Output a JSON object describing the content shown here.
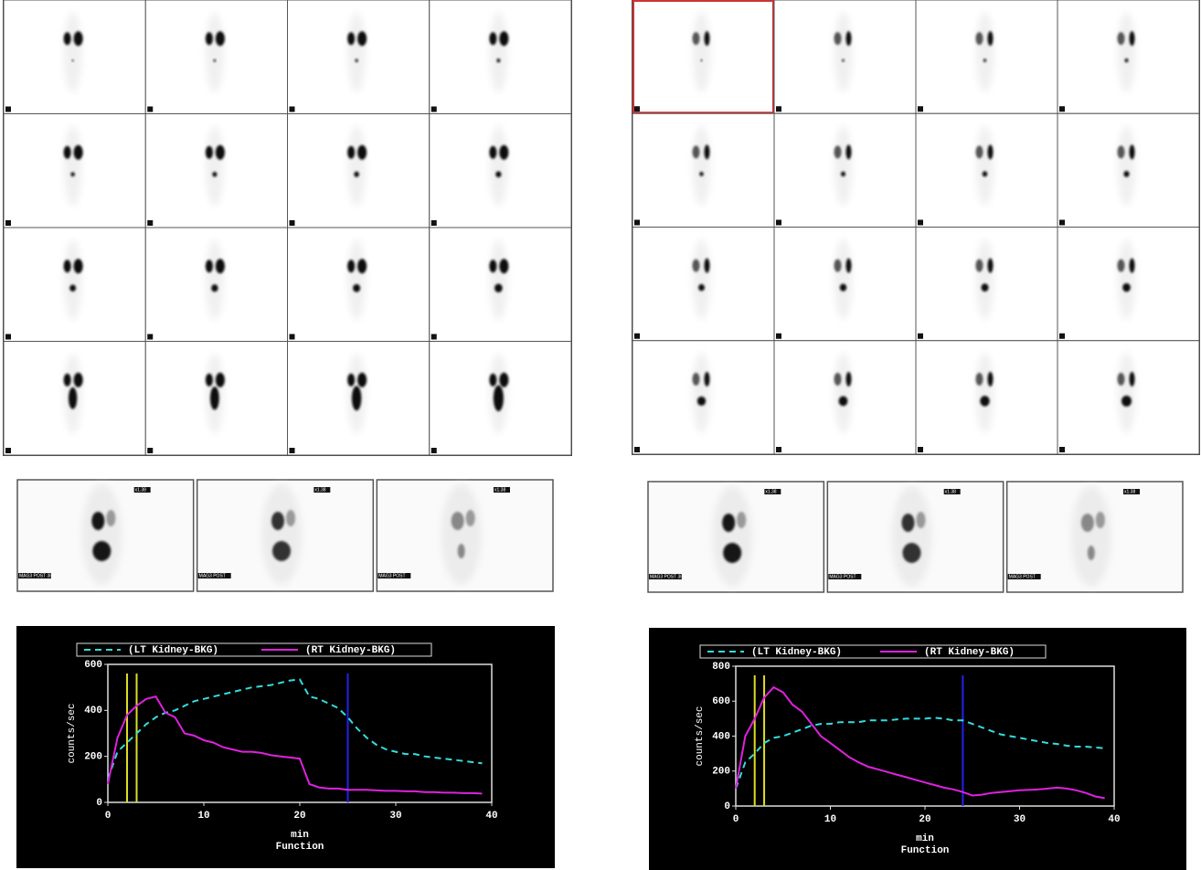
{
  "post_images": [
    [
      {
        "label": "MAG3 POST 38 dk",
        "zoom": "x1.38"
      },
      {
        "label": "MAG3 POST",
        "zoom": "x1.38"
      },
      {
        "label": "MAG3 POST",
        "zoom": "x1.38"
      }
    ],
    [
      {
        "label": "MAG3 POST 38 dk",
        "zoom": "x1.38"
      },
      {
        "label": "MAG3 POST",
        "zoom": "x1.38"
      },
      {
        "label": "MAG3 POST",
        "zoom": "x1.38"
      }
    ]
  ],
  "chart_data": [
    {
      "type": "line",
      "ylabel": "counts/sec",
      "xlabel": "min",
      "caption": "Function",
      "xlim": [
        0,
        40
      ],
      "xticks": [
        0,
        10,
        20,
        30,
        40
      ],
      "ylim": [
        0,
        600
      ],
      "yticks": [
        0,
        200,
        400,
        600
      ],
      "legend": "top",
      "x": [
        0,
        1,
        2,
        3,
        4,
        5,
        6,
        7,
        8,
        9,
        10,
        11,
        12,
        13,
        14,
        15,
        16,
        17,
        18,
        19,
        20,
        21,
        22,
        23,
        24,
        25,
        26,
        27,
        28,
        29,
        30,
        31,
        32,
        33,
        34,
        35,
        36,
        37,
        38,
        39
      ],
      "series": [
        {
          "name": "(LT Kidney-BKG)",
          "color": "#33dddd",
          "dashed": true,
          "values": [
            100,
            220,
            260,
            300,
            340,
            370,
            390,
            400,
            420,
            440,
            450,
            460,
            470,
            480,
            490,
            500,
            505,
            510,
            520,
            530,
            535,
            460,
            450,
            430,
            410,
            370,
            320,
            280,
            250,
            230,
            220,
            210,
            210,
            200,
            195,
            190,
            185,
            180,
            175,
            170
          ]
        },
        {
          "name": "(RT Kidney-BKG)",
          "color": "#dd22dd",
          "dashed": false,
          "values": [
            80,
            280,
            380,
            420,
            450,
            460,
            390,
            370,
            300,
            290,
            270,
            260,
            240,
            230,
            220,
            220,
            215,
            205,
            200,
            195,
            190,
            80,
            65,
            60,
            60,
            55,
            55,
            55,
            52,
            50,
            50,
            48,
            48,
            45,
            45,
            42,
            42,
            40,
            40,
            38
          ]
        }
      ],
      "vlines": [
        {
          "x": 2,
          "color": "#dddd22"
        },
        {
          "x": 3,
          "color": "#dddd22"
        },
        {
          "x": 25,
          "color": "#2222ee"
        }
      ]
    },
    {
      "type": "line",
      "ylabel": "counts/sec",
      "xlabel": "min",
      "caption": "Function",
      "xlim": [
        0,
        40
      ],
      "xticks": [
        0,
        10,
        20,
        30,
        40
      ],
      "ylim": [
        0,
        800
      ],
      "yticks": [
        0,
        200,
        400,
        600,
        800
      ],
      "legend": "top",
      "x": [
        0,
        1,
        2,
        3,
        4,
        5,
        6,
        7,
        8,
        9,
        10,
        11,
        12,
        13,
        14,
        15,
        16,
        17,
        18,
        19,
        20,
        21,
        22,
        23,
        24,
        25,
        26,
        27,
        28,
        29,
        30,
        31,
        32,
        33,
        34,
        35,
        36,
        37,
        38,
        39
      ],
      "series": [
        {
          "name": "(LT Kidney-BKG)",
          "color": "#33dddd",
          "dashed": true,
          "values": [
            100,
            250,
            300,
            360,
            390,
            400,
            420,
            440,
            460,
            470,
            470,
            480,
            480,
            480,
            490,
            490,
            490,
            495,
            500,
            500,
            500,
            505,
            500,
            490,
            490,
            470,
            450,
            430,
            410,
            400,
            390,
            380,
            370,
            360,
            355,
            345,
            340,
            340,
            335,
            330
          ]
        },
        {
          "name": "(RT Kidney-BKG)",
          "color": "#dd22dd",
          "dashed": false,
          "values": [
            100,
            400,
            500,
            620,
            680,
            650,
            580,
            540,
            470,
            400,
            360,
            320,
            280,
            250,
            225,
            210,
            195,
            180,
            165,
            150,
            135,
            120,
            105,
            95,
            80,
            60,
            65,
            75,
            80,
            85,
            90,
            92,
            95,
            100,
            105,
            100,
            90,
            75,
            55,
            45
          ]
        }
      ],
      "vlines": [
        {
          "x": 2,
          "color": "#dddd22"
        },
        {
          "x": 3,
          "color": "#dddd22"
        },
        {
          "x": 24,
          "color": "#2222ee"
        }
      ]
    }
  ]
}
